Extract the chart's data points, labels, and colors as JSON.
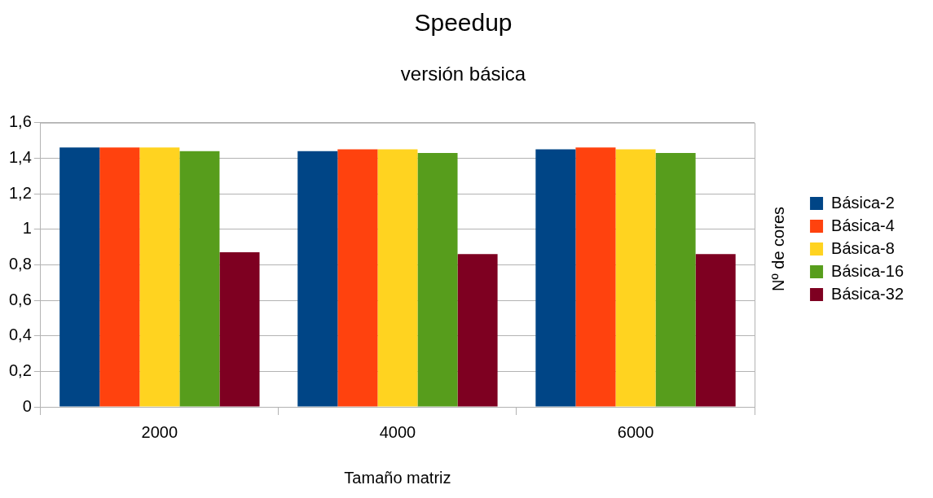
{
  "chart_data": {
    "type": "bar",
    "title": "Speedup",
    "subtitle": "versión básica",
    "xlabel": "Tamaño matriz",
    "legend_title": "Nº de cores",
    "categories": [
      "2000",
      "4000",
      "6000"
    ],
    "series": [
      {
        "name": "Básica-2",
        "color": "#004586",
        "values": [
          1.46,
          1.44,
          1.45
        ]
      },
      {
        "name": "Básica-4",
        "color": "#ff420e",
        "values": [
          1.46,
          1.45,
          1.46
        ]
      },
      {
        "name": "Básica-8",
        "color": "#ffd320",
        "values": [
          1.46,
          1.45,
          1.45
        ]
      },
      {
        "name": "Básica-16",
        "color": "#579d1c",
        "values": [
          1.44,
          1.43,
          1.43
        ]
      },
      {
        "name": "Básica-32",
        "color": "#7e0021",
        "values": [
          0.87,
          0.86,
          0.86
        ]
      }
    ],
    "ylim": [
      0,
      1.6
    ],
    "yticks": [
      0,
      {
        "value": 0.2,
        "label": "0,2"
      },
      {
        "value": 0.4,
        "label": "0,4"
      },
      {
        "value": 0.6,
        "label": "0,6"
      },
      {
        "value": 0.8,
        "label": "0,8"
      },
      1,
      {
        "value": 1.2,
        "label": "1,2"
      },
      {
        "value": 1.4,
        "label": "1,4"
      },
      {
        "value": 1.6,
        "label": "1,6"
      }
    ],
    "grid": "y",
    "legend": "right"
  }
}
